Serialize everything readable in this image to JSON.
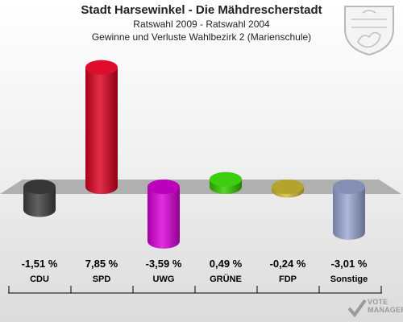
{
  "header": {
    "title": "Stadt Harsewinkel - Die Mähdrescherstadt",
    "subtitle1": "Ratswahl 2009 - Ratswahl 2004",
    "subtitle2": "Gewinne und Verluste Wahlbezirk 2 (Marienschule)"
  },
  "watermark": {
    "line1": "VOTE",
    "line2": "MANAGER"
  },
  "colors": {
    "background_top": "#ffffff",
    "background_bottom": "#dcdcdc",
    "baseline_plane": "#b0b0b0"
  },
  "chart_data": {
    "type": "bar",
    "categories": [
      "CDU",
      "SPD",
      "UWG",
      "GRÜNE",
      "FDP",
      "Sonstige"
    ],
    "values": [
      -1.51,
      7.85,
      -3.59,
      0.49,
      -0.24,
      -3.01
    ],
    "value_labels": [
      "-1,51 %",
      "7,85 %",
      "-3,59 %",
      "0,49 %",
      "-0,24 %",
      "-3,01 %"
    ],
    "colors": [
      "#404040",
      "#dd0020",
      "#dd00dd",
      "#33cc00",
      "#d4c034",
      "#9aa8d4"
    ],
    "unit": "%",
    "title": "Stadt Harsewinkel - Die Mähdrescherstadt",
    "xlabel": "",
    "ylabel": ""
  }
}
